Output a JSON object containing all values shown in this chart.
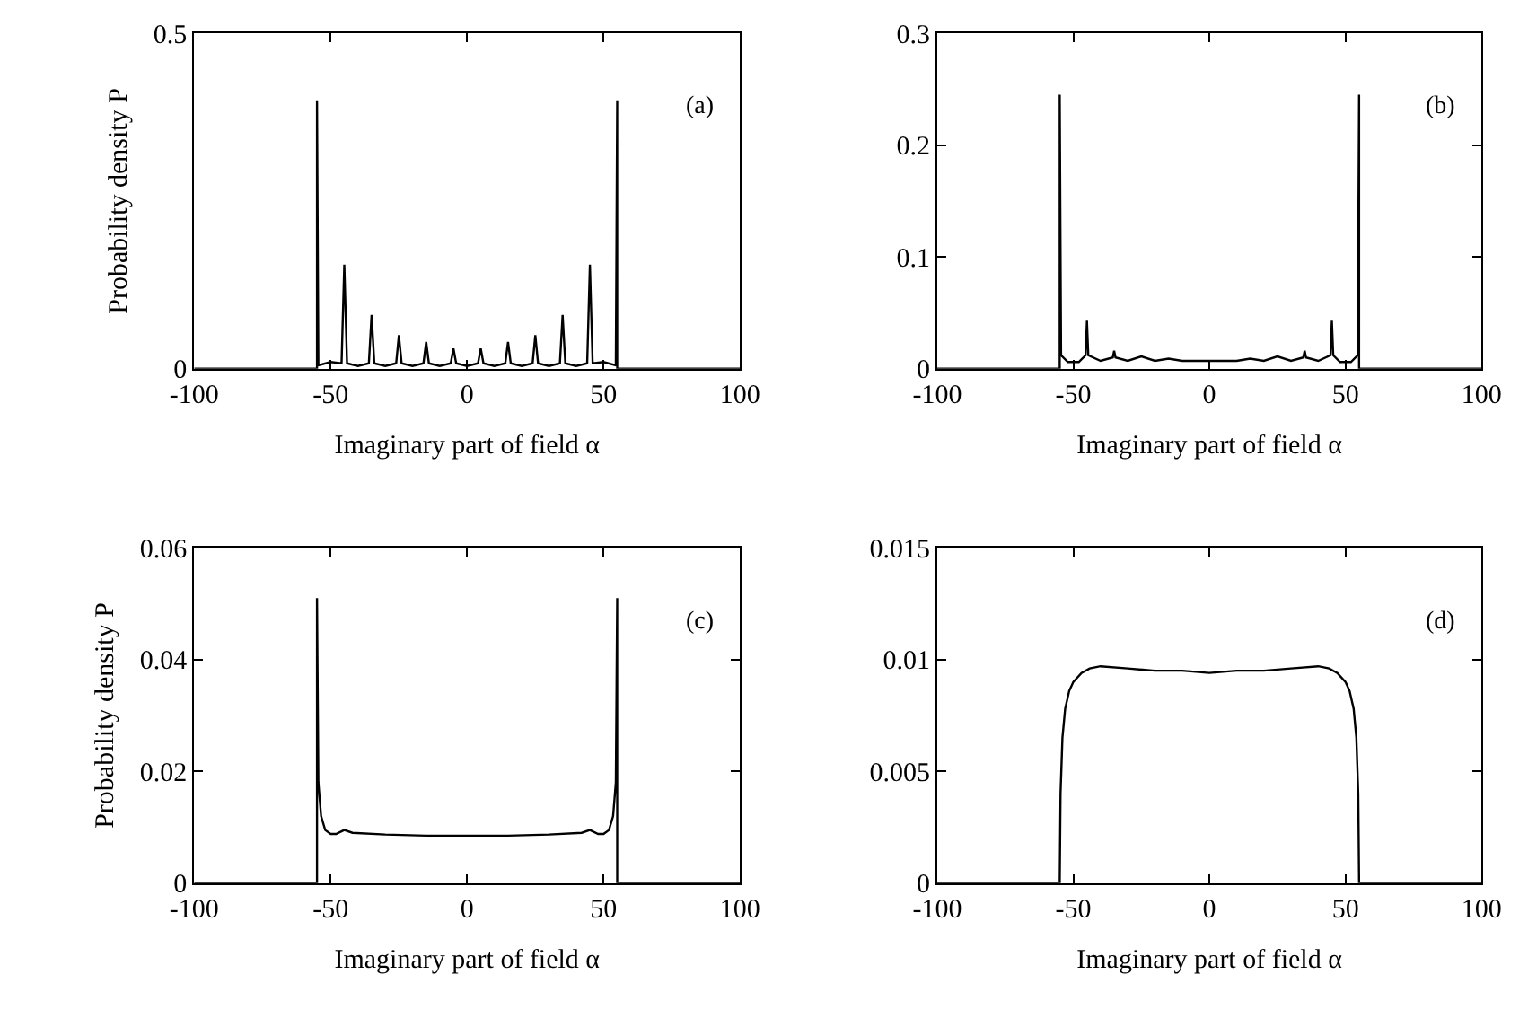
{
  "chart_data": [
    {
      "type": "line",
      "color": "#000000",
      "xlabel": "Imaginary part of field α",
      "ylabel": "Probability density P",
      "annotations": [
        "(a)"
      ],
      "xlim": [
        -100,
        100
      ],
      "xticks": [
        -100,
        -50,
        0,
        50,
        100
      ],
      "ylim": [
        0,
        0.5
      ],
      "yticks": [
        0,
        0.5
      ],
      "x": [
        -100,
        -55,
        -55,
        -54.5,
        -50,
        -46,
        -45,
        -44,
        -40,
        -36,
        -35,
        -34,
        -30,
        -26,
        -25,
        -24,
        -20,
        -16,
        -15,
        -14,
        -10,
        -6,
        -5,
        -4,
        0,
        4,
        5,
        6,
        10,
        14,
        15,
        16,
        20,
        24,
        25,
        26,
        30,
        34,
        35,
        36,
        40,
        44,
        45,
        46,
        50,
        54.5,
        55,
        55,
        100
      ],
      "values": [
        0,
        0,
        0.4,
        0.005,
        0.01,
        0.008,
        0.155,
        0.008,
        0.004,
        0.008,
        0.08,
        0.008,
        0.004,
        0.008,
        0.05,
        0.008,
        0.004,
        0.008,
        0.04,
        0.008,
        0.004,
        0.008,
        0.03,
        0.008,
        0.004,
        0.008,
        0.03,
        0.008,
        0.004,
        0.008,
        0.04,
        0.008,
        0.004,
        0.008,
        0.05,
        0.008,
        0.004,
        0.008,
        0.08,
        0.008,
        0.004,
        0.008,
        0.155,
        0.008,
        0.01,
        0.005,
        0.4,
        0,
        0
      ]
    },
    {
      "type": "line",
      "color": "#000000",
      "xlabel": "Imaginary part of field α",
      "annotations": [
        "(b)"
      ],
      "xlim": [
        -100,
        100
      ],
      "xticks": [
        -100,
        -50,
        0,
        50,
        100
      ],
      "ylim": [
        0,
        0.3
      ],
      "yticks": [
        0,
        0.1,
        0.2,
        0.3
      ],
      "x": [
        -100,
        -55,
        -55,
        -54.5,
        -52,
        -48,
        -45.5,
        -45,
        -44.5,
        -40,
        -35.5,
        -35,
        -34.5,
        -30,
        -25,
        -20,
        -15,
        -10,
        0,
        10,
        15,
        20,
        25,
        30,
        34.5,
        35,
        35.5,
        40,
        44.5,
        45,
        45.5,
        48,
        52,
        54.5,
        55,
        55,
        100
      ],
      "values": [
        0,
        0,
        0.245,
        0.012,
        0.006,
        0.006,
        0.012,
        0.043,
        0.012,
        0.007,
        0.01,
        0.016,
        0.01,
        0.007,
        0.011,
        0.007,
        0.009,
        0.007,
        0.007,
        0.007,
        0.009,
        0.007,
        0.011,
        0.007,
        0.01,
        0.016,
        0.01,
        0.007,
        0.012,
        0.043,
        0.012,
        0.006,
        0.006,
        0.012,
        0.245,
        0,
        0
      ]
    },
    {
      "type": "line",
      "color": "#000000",
      "xlabel": "Imaginary part of field α",
      "ylabel": "Probability density P",
      "annotations": [
        "(c)"
      ],
      "xlim": [
        -100,
        100
      ],
      "xticks": [
        -100,
        -50,
        0,
        50,
        100
      ],
      "ylim": [
        0,
        0.06
      ],
      "yticks": [
        0,
        0.02,
        0.04,
        0.06
      ],
      "x": [
        -100,
        -55,
        -55,
        -54.5,
        -53.5,
        -52,
        -50,
        -48,
        -45,
        -42,
        -30,
        -15,
        0,
        15,
        30,
        42,
        45,
        48,
        50,
        52,
        53.5,
        54.5,
        55,
        55,
        100
      ],
      "values": [
        0,
        0,
        0.051,
        0.018,
        0.012,
        0.0095,
        0.0088,
        0.0088,
        0.0095,
        0.009,
        0.0087,
        0.0085,
        0.0085,
        0.0085,
        0.0087,
        0.009,
        0.0095,
        0.0088,
        0.0088,
        0.0095,
        0.012,
        0.018,
        0.051,
        0,
        0
      ]
    },
    {
      "type": "line",
      "color": "#000000",
      "xlabel": "Imaginary part of field α",
      "annotations": [
        "(d)"
      ],
      "xlim": [
        -100,
        100
      ],
      "xticks": [
        -100,
        -50,
        0,
        50,
        100
      ],
      "ylim": [
        0,
        0.015
      ],
      "yticks": [
        0,
        0.005,
        0.01,
        0.015
      ],
      "x": [
        -100,
        -55,
        -54.7,
        -54,
        -53,
        -51.5,
        -50,
        -47,
        -44,
        -40,
        -30,
        -20,
        -10,
        0,
        10,
        20,
        30,
        40,
        44,
        47,
        50,
        51.5,
        53,
        54,
        54.7,
        55,
        100
      ],
      "values": [
        0,
        0,
        0.004,
        0.0065,
        0.0078,
        0.0086,
        0.009,
        0.0094,
        0.0096,
        0.0097,
        0.0096,
        0.0095,
        0.0095,
        0.0094,
        0.0095,
        0.0095,
        0.0096,
        0.0097,
        0.0096,
        0.0094,
        0.009,
        0.0086,
        0.0078,
        0.0065,
        0.004,
        0,
        0
      ]
    }
  ]
}
